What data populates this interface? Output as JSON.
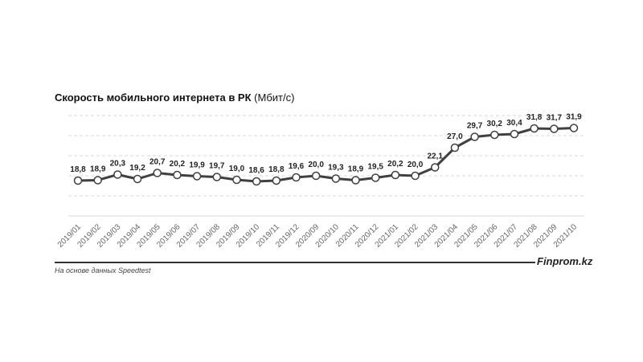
{
  "chart_data": {
    "type": "line",
    "title_bold": "Скорость мобильного интернета в РК",
    "title_unit": "(Мбит/с)",
    "categories": [
      "2019/01",
      "2019/02",
      "2019/03",
      "2019/04",
      "2019/05",
      "2019/06",
      "2019/07",
      "2019/08",
      "2019/09",
      "2019/10",
      "2019/11",
      "2019/12",
      "2020/09",
      "2020/10",
      "2020/11",
      "2020/12",
      "2021/01",
      "2021/02",
      "2021/03",
      "2021/04",
      "2021/05",
      "2021/06",
      "2021/07",
      "2021/08",
      "2021/09",
      "2021/10"
    ],
    "values": [
      18.8,
      18.9,
      20.3,
      19.2,
      20.7,
      20.2,
      19.9,
      19.7,
      19.0,
      18.6,
      18.8,
      19.6,
      20.0,
      19.3,
      18.9,
      19.5,
      20.2,
      20.0,
      22.1,
      27.0,
      29.7,
      30.2,
      30.4,
      31.8,
      31.7,
      31.9
    ],
    "labels": [
      "18,8",
      "18,9",
      "20,3",
      "19,2",
      "20,7",
      "20,2",
      "19,9",
      "19,7",
      "19,0",
      "18,6",
      "18,8",
      "19,6",
      "20,0",
      "19,3",
      "18,9",
      "19,5",
      "20,2",
      "20,0",
      "22,1",
      "27,0",
      "29,7",
      "30,2",
      "30,4",
      "31,8",
      "31,7",
      "31,9"
    ],
    "ylim": [
      10,
      35
    ],
    "grid": true,
    "line_color": "#404040"
  },
  "footer": {
    "brand": "Finprom.kz",
    "source": "На основе данных Speedtest"
  }
}
